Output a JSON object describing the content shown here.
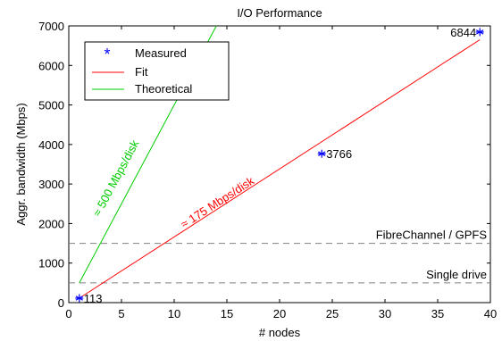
{
  "chart_data": {
    "type": "line",
    "title": "I/O Performance",
    "xlabel": "# nodes",
    "ylabel": "Aggr. bandwidth (Mbps)",
    "xlim": [
      0,
      40
    ],
    "ylim": [
      0,
      7000
    ],
    "x_ticks": [
      0,
      5,
      10,
      15,
      20,
      25,
      30,
      35,
      40
    ],
    "y_ticks": [
      0,
      1000,
      2000,
      3000,
      4000,
      5000,
      6000,
      7000
    ],
    "x_tick_labels": [
      "0",
      "5",
      "10",
      "15",
      "20",
      "25",
      "30",
      "35",
      "40"
    ],
    "y_tick_labels": [
      "0",
      "1000",
      "2000",
      "3000",
      "4000",
      "5000",
      "6000",
      "7000"
    ],
    "grid": false,
    "legend_position": "top-left",
    "series": [
      {
        "name": "Measured",
        "style": "marker",
        "color": "#0000ff",
        "x": [
          1,
          24,
          39
        ],
        "y": [
          113,
          3766,
          6844
        ],
        "labels": [
          "113",
          "3766",
          "6844"
        ]
      },
      {
        "name": "Fit",
        "style": "line",
        "color": "#ff0000",
        "x": [
          1,
          39
        ],
        "y": [
          113,
          6650
        ]
      },
      {
        "name": "Theoretical",
        "style": "line",
        "color": "#00cc00",
        "x": [
          1,
          2,
          14
        ],
        "y": [
          500,
          1000,
          7000
        ]
      }
    ],
    "reference_lines": [
      {
        "label": "FibreChannel / GPFS",
        "y": 1500,
        "color": "#808080"
      },
      {
        "label": "Single drive",
        "y": 500,
        "color": "#808080"
      }
    ],
    "annotations": [
      {
        "text": "≈ 175 Mbps/disk",
        "color": "#ff0000",
        "x": 14.3,
        "y": 2450
      },
      {
        "text": "≈ 500 Mbps/disk",
        "color": "#00cc00",
        "x": 4.8,
        "y": 3100
      }
    ]
  }
}
